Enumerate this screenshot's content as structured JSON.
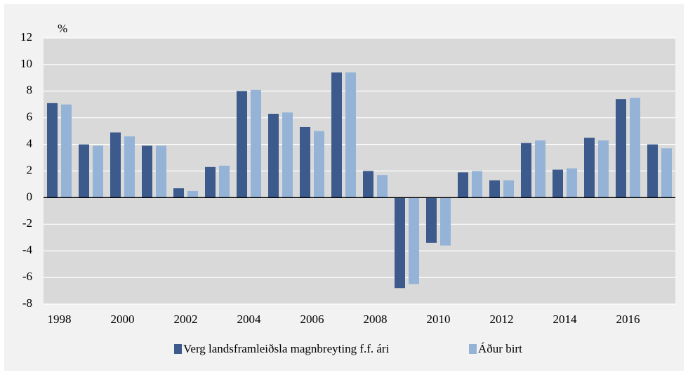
{
  "chart_data": {
    "type": "bar",
    "y_label": "%",
    "categories": [
      "1998",
      null,
      "2000",
      null,
      "2002",
      null,
      "2004",
      null,
      "2006",
      null,
      "2008",
      null,
      "2010",
      null,
      "2012",
      null,
      "2014",
      null,
      "2016",
      null
    ],
    "series": [
      {
        "name": "Verg landsframleiðsla magnbreyting f.f. ári",
        "color": "#3c5a8c",
        "values": [
          7.1,
          4.0,
          4.9,
          3.9,
          0.7,
          2.3,
          8.0,
          6.3,
          5.3,
          9.4,
          2.0,
          -6.8,
          -3.4,
          1.9,
          1.3,
          4.1,
          2.1,
          4.5,
          7.4,
          4.0
        ]
      },
      {
        "name": "Áður birt",
        "color": "#95b3d7",
        "values": [
          7.0,
          3.9,
          4.6,
          3.9,
          0.5,
          2.4,
          8.1,
          6.4,
          5.0,
          9.4,
          1.7,
          -6.5,
          -3.6,
          2.0,
          1.3,
          4.3,
          2.2,
          4.3,
          7.5,
          3.7
        ]
      }
    ],
    "ylim": [
      -8,
      12
    ],
    "yticks": [
      -8,
      -6,
      -4,
      -2,
      0,
      2,
      4,
      6,
      8,
      10,
      12
    ],
    "grid": true,
    "legend": "bottom"
  }
}
